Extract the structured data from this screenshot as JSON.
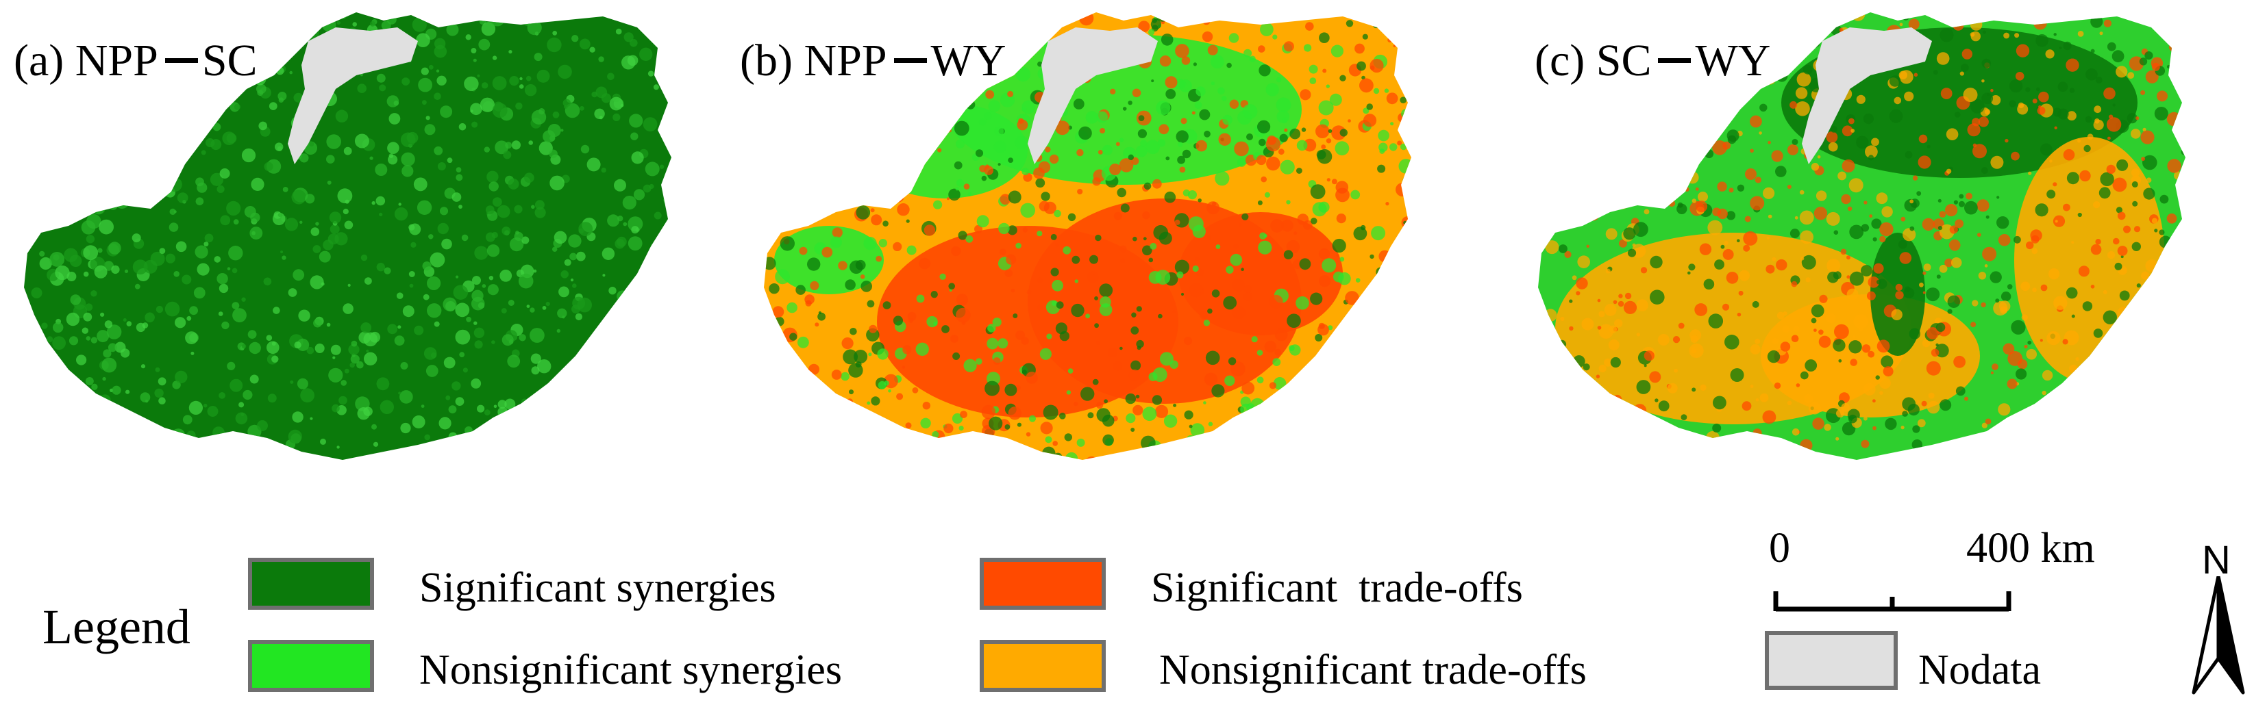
{
  "panels": [
    {
      "id": "a",
      "label_prefix": "(a) NPP",
      "label_suffix": "SC",
      "base_color": "#0b7a0b",
      "patch_colors": [
        "#29b429",
        "#1a9a1a",
        "#3fd13f"
      ]
    },
    {
      "id": "b",
      "label_prefix": "(b) NPP",
      "label_suffix": "WY",
      "base_color": "#ffaa00",
      "patch_colors": [
        "#ff4a00",
        "#2ee62e",
        "#0b7a0b"
      ]
    },
    {
      "id": "c",
      "label_prefix": "(c) SC",
      "label_suffix": "WY",
      "base_color": "#2ecf2e",
      "patch_colors": [
        "#0b7a0b",
        "#ffaa00",
        "#ff4a00"
      ]
    }
  ],
  "legend": {
    "title": "Legend",
    "items": [
      {
        "label": "Significant synergies",
        "color": "#0b7a0b"
      },
      {
        "label": "Nonsignificant synergies",
        "color": "#22e622"
      },
      {
        "label": "Significant  trade-offs",
        "color": "#ff4a00"
      },
      {
        "label": "Nonsignificant trade-offs",
        "color": "#ffaa00"
      },
      {
        "label": "Nodata",
        "color": "#e0e0e0"
      }
    ]
  },
  "scale": {
    "start": "0",
    "end": "400 km"
  },
  "north": {
    "label": "N"
  }
}
